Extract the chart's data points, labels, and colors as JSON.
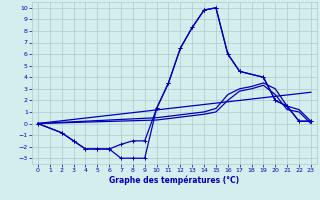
{
  "title": "Graphe des températures (°C)",
  "bg_color": "#d4eeee",
  "grid_color": "#aacccc",
  "line_color": "#0000bb",
  "xlim": [
    -0.5,
    23.5
  ],
  "ylim": [
    -3.5,
    10.5
  ],
  "xticks": [
    0,
    1,
    2,
    3,
    4,
    5,
    6,
    7,
    8,
    9,
    10,
    11,
    12,
    13,
    14,
    15,
    16,
    17,
    18,
    19,
    20,
    21,
    22,
    23
  ],
  "yticks": [
    -3,
    -2,
    -1,
    0,
    1,
    2,
    3,
    4,
    5,
    6,
    7,
    8,
    9,
    10
  ],
  "line1_x": [
    0,
    2,
    3,
    4,
    5,
    6,
    7,
    8,
    9,
    10,
    11,
    12,
    13,
    14,
    15,
    16,
    17,
    19,
    20,
    21,
    22,
    23
  ],
  "line1_y": [
    0,
    -0.8,
    -1.5,
    -2.2,
    -2.2,
    -2.2,
    -3.0,
    -3.0,
    -3.0,
    1.3,
    3.5,
    6.5,
    8.3,
    9.8,
    10.0,
    6.0,
    4.5,
    4.0,
    2.0,
    1.5,
    0.2,
    0.2
  ],
  "line2_x": [
    0,
    2,
    3,
    4,
    5,
    6,
    7,
    8,
    9,
    10,
    11,
    12,
    13,
    14,
    15,
    16,
    17,
    19,
    20,
    21,
    22,
    23
  ],
  "line2_y": [
    0,
    -0.8,
    -1.5,
    -2.2,
    -2.2,
    -2.2,
    -1.8,
    -1.5,
    -1.5,
    1.3,
    3.5,
    6.5,
    8.3,
    9.8,
    10.0,
    6.0,
    4.5,
    4.0,
    2.0,
    1.5,
    0.2,
    0.2
  ],
  "line3_x": [
    0,
    23
  ],
  "line3_y": [
    0,
    2.7
  ],
  "line4_x": [
    0,
    10,
    14,
    15,
    16,
    17,
    18,
    19,
    20,
    21,
    22,
    23
  ],
  "line4_y": [
    0,
    0.5,
    1.0,
    1.3,
    2.5,
    3.0,
    3.2,
    3.5,
    3.0,
    1.5,
    1.2,
    0.2
  ],
  "line5_x": [
    0,
    10,
    14,
    15,
    16,
    17,
    18,
    19,
    20,
    21,
    22,
    23
  ],
  "line5_y": [
    0,
    0.3,
    0.8,
    1.0,
    2.0,
    2.8,
    3.0,
    3.3,
    2.5,
    1.2,
    1.0,
    0.0
  ]
}
